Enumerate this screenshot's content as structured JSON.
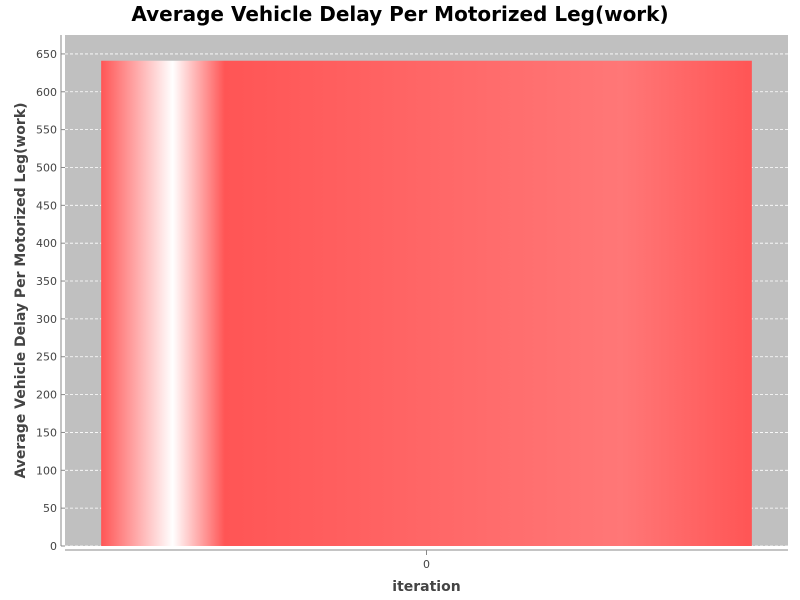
{
  "chart_data": {
    "type": "bar",
    "title": "Average Vehicle Delay Per Motorized Leg(work)",
    "xlabel": "iteration",
    "ylabel": "Average Vehicle Delay Per Motorized Leg(work)",
    "categories": [
      "0"
    ],
    "values": [
      641
    ],
    "ylim": [
      0,
      675
    ],
    "yticks": [
      0,
      50,
      100,
      150,
      200,
      250,
      300,
      350,
      400,
      450,
      500,
      550,
      600,
      650
    ],
    "grid": true,
    "legend": "none"
  },
  "colors": {
    "plot_background": "#c0c0c0",
    "bar": "#ff5555",
    "grid": "#ffffff",
    "axis_text": "#444444"
  }
}
